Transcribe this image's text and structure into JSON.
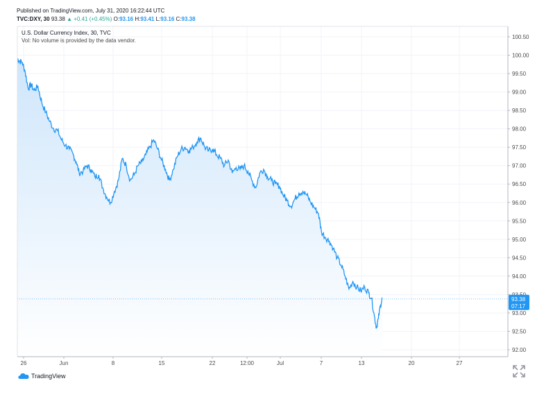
{
  "header": {
    "published": "Published on TradingView.com, July 31, 2020 16:22:44 UTC",
    "symbol": "TVC:DXY, 30",
    "last": "93.38",
    "change": "+0.41 (+0.45%)",
    "o_label": "O:",
    "o": "93.16",
    "h_label": "H:",
    "h": "93.41",
    "l_label": "L:",
    "l": "93.16",
    "c_label": "C:",
    "c": "93.38"
  },
  "legend": {
    "title": "U.S. Dollar Currency Index, 30, TVC",
    "volume_note": "Vol: No volume is provided by the data vendor."
  },
  "price_badge": {
    "price": "93.38",
    "countdown": "07:17"
  },
  "brand": {
    "name": "TradingView"
  },
  "icons": {
    "logo": "tradingview-cloud-icon",
    "fullscreen": "fullscreen-icon",
    "change_arrow": "up-triangle-icon"
  },
  "colors": {
    "line": "#2196f3",
    "fill_top": "#cfe6fb",
    "fill_bottom": "#ffffff",
    "up": "#26a69a",
    "badge": "#2196f3",
    "grid": "#f0f3fa"
  },
  "chart_data": {
    "type": "area",
    "series": [
      {
        "values": [
          [
            0,
            99.9
          ],
          [
            0.004,
            99.85
          ],
          [
            0.01,
            99.8
          ],
          [
            0.016,
            99.55
          ],
          [
            0.022,
            99.1
          ],
          [
            0.028,
            99.2
          ],
          [
            0.034,
            99.05
          ],
          [
            0.042,
            99.15
          ],
          [
            0.05,
            98.7
          ],
          [
            0.058,
            98.45
          ],
          [
            0.066,
            98.2
          ],
          [
            0.074,
            98.0
          ],
          [
            0.082,
            97.95
          ],
          [
            0.09,
            97.7
          ],
          [
            0.098,
            97.55
          ],
          [
            0.106,
            97.45
          ],
          [
            0.114,
            97.3
          ],
          [
            0.12,
            97.1
          ],
          [
            0.126,
            96.8
          ],
          [
            0.134,
            96.85
          ],
          [
            0.142,
            97.0
          ],
          [
            0.15,
            96.9
          ],
          [
            0.158,
            96.7
          ],
          [
            0.166,
            96.75
          ],
          [
            0.174,
            96.4
          ],
          [
            0.182,
            96.15
          ],
          [
            0.19,
            96.0
          ],
          [
            0.198,
            96.3
          ],
          [
            0.206,
            96.6
          ],
          [
            0.214,
            97.2
          ],
          [
            0.222,
            97.0
          ],
          [
            0.23,
            96.6
          ],
          [
            0.238,
            96.75
          ],
          [
            0.246,
            97.0
          ],
          [
            0.254,
            97.1
          ],
          [
            0.262,
            97.3
          ],
          [
            0.27,
            97.5
          ],
          [
            0.278,
            97.7
          ],
          [
            0.286,
            97.45
          ],
          [
            0.294,
            97.15
          ],
          [
            0.302,
            96.9
          ],
          [
            0.31,
            96.6
          ],
          [
            0.318,
            96.9
          ],
          [
            0.326,
            97.25
          ],
          [
            0.334,
            97.45
          ],
          [
            0.342,
            97.5
          ],
          [
            0.35,
            97.4
          ],
          [
            0.358,
            97.5
          ],
          [
            0.366,
            97.65
          ],
          [
            0.374,
            97.75
          ],
          [
            0.382,
            97.5
          ],
          [
            0.39,
            97.4
          ],
          [
            0.398,
            97.45
          ],
          [
            0.406,
            97.3
          ],
          [
            0.414,
            97.2
          ],
          [
            0.422,
            97.0
          ],
          [
            0.43,
            97.15
          ],
          [
            0.438,
            96.8
          ],
          [
            0.446,
            96.95
          ],
          [
            0.454,
            96.9
          ],
          [
            0.462,
            97.0
          ],
          [
            0.47,
            96.85
          ],
          [
            0.478,
            96.6
          ],
          [
            0.486,
            96.4
          ],
          [
            0.494,
            96.8
          ],
          [
            0.502,
            96.9
          ],
          [
            0.51,
            96.7
          ],
          [
            0.518,
            96.6
          ],
          [
            0.526,
            96.5
          ],
          [
            0.534,
            96.45
          ],
          [
            0.542,
            96.2
          ],
          [
            0.55,
            96.05
          ],
          [
            0.558,
            95.9
          ],
          [
            0.566,
            96.1
          ],
          [
            0.574,
            96.25
          ],
          [
            0.582,
            96.3
          ],
          [
            0.59,
            96.2
          ],
          [
            0.598,
            96.0
          ],
          [
            0.606,
            95.85
          ],
          [
            0.614,
            95.7
          ],
          [
            0.62,
            95.2
          ],
          [
            0.628,
            95.05
          ],
          [
            0.636,
            94.95
          ],
          [
            0.644,
            94.75
          ],
          [
            0.652,
            94.5
          ],
          [
            0.66,
            94.3
          ],
          [
            0.668,
            94.0
          ],
          [
            0.676,
            93.65
          ],
          [
            0.684,
            93.85
          ],
          [
            0.692,
            93.7
          ],
          [
            0.7,
            93.6
          ],
          [
            0.708,
            93.7
          ],
          [
            0.716,
            93.55
          ],
          [
            0.722,
            93.4
          ],
          [
            0.728,
            92.9
          ],
          [
            0.732,
            92.6
          ],
          [
            0.736,
            92.85
          ],
          [
            0.74,
            93.2
          ],
          [
            0.744,
            93.38
          ]
        ]
      }
    ],
    "xticks": [
      "26",
      "Jun",
      "8",
      "15",
      "22",
      "12:00",
      "Jul",
      "7",
      "13",
      "20",
      "27"
    ],
    "yticks": [
      "100.50",
      "100.00",
      "99.50",
      "99.00",
      "98.50",
      "98.00",
      "97.50",
      "97.00",
      "96.50",
      "96.00",
      "95.50",
      "95.00",
      "94.50",
      "94.00",
      "93.50",
      "93.00",
      "92.50",
      "92.00"
    ],
    "ylim": [
      91.8,
      100.8
    ],
    "last_value": 93.38,
    "grid": true
  }
}
